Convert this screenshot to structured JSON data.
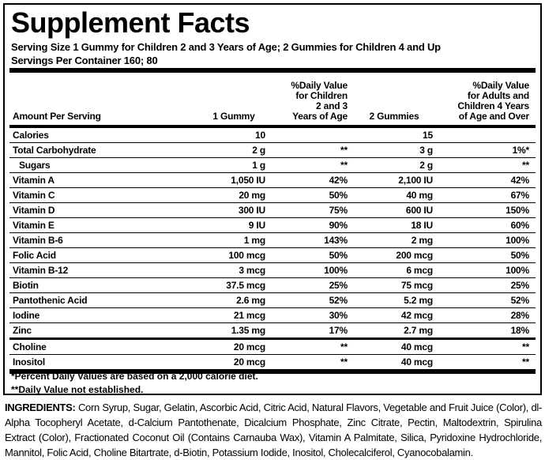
{
  "title": "Supplement Facts",
  "serving_size": "Serving Size 1 Gummy for Children 2 and 3 Years of Age; 2 Gummies for Children 4 and Up",
  "servings": "Servings Per Container 160; 80",
  "table": {
    "headers": [
      [
        "Amount Per Serving"
      ],
      [
        "1 Gummy"
      ],
      [
        "%Daily Value",
        "for Children",
        "2 and 3",
        "Years of Age"
      ],
      [
        "2 Gummies"
      ],
      [
        "%Daily Value",
        "for Adults and",
        "Children 4 Years",
        "of Age and Over"
      ]
    ],
    "sections": [
      [
        [
          "Calories",
          "10",
          null,
          "15",
          null
        ],
        [
          "Total Carbohydrate",
          "2 g",
          "**",
          "3 g",
          "1%*"
        ],
        [
          "Sugars",
          "1 g",
          "**",
          "2 g",
          "**"
        ],
        [
          "Vitamin A",
          "1,050 IU",
          "42%",
          "2,100 IU",
          "42%"
        ],
        [
          "Vitamin C",
          "20 mg",
          "50%",
          "40 mg",
          "67%"
        ],
        [
          "Vitamin D",
          "300 IU",
          "75%",
          "600 IU",
          "150%"
        ],
        [
          "Vitamin E",
          "9 IU",
          "90%",
          "18 IU",
          "60%"
        ],
        [
          "Vitamin B-6",
          "1 mg",
          "143%",
          "2 mg",
          "100%"
        ],
        [
          "Folic Acid",
          "100 mcg",
          "50%",
          "200 mcg",
          "50%"
        ],
        [
          "Vitamin B-12",
          "3 mcg",
          "100%",
          "6 mcg",
          "100%"
        ],
        [
          "Biotin",
          "37.5 mcg",
          "25%",
          "75 mcg",
          "25%"
        ],
        [
          "Pantothenic Acid",
          "2.6 mg",
          "52%",
          "5.2 mg",
          "52%"
        ],
        [
          "Iodine",
          "21 mcg",
          "30%",
          "42 mcg",
          "28%"
        ],
        [
          "Zinc",
          "1.35 mg",
          "17%",
          "2.7 mg",
          "18%"
        ]
      ],
      [
        [
          "Choline",
          "20 mcg",
          "**",
          "40 mcg",
          "**"
        ],
        [
          "Inositol",
          "20 mcg",
          "**",
          "40 mcg",
          "**"
        ]
      ]
    ]
  },
  "footnotes": [
    "*Percent Daily Values are based on a 2,000 calorie diet.",
    "**Daily Value not established."
  ],
  "ingredients_label": "INGREDIENTS:",
  "ingredients": "Corn Syrup, Sugar, Gelatin, Ascorbic Acid, Citric Acid, Natural Flavors, Vegetable and Fruit Juice (Color), dl-Alpha Tocopheryl Acetate, d-Calcium Pantothenate, Dicalcium Phosphate, Zinc Citrate, Pectin, Maltodextrin, Spirulina Extract (Color), Fractionated Coconut Oil (Contains Carnauba Wax), Vitamin A Palmitate, Silica, Pyridoxine Hydrochloride, Mannitol, Folic Acid, Choline Bitartrate, d-Biotin, Potassium Iodide, Inositol, Cholecalciferol, Cyanocobalamin."
}
